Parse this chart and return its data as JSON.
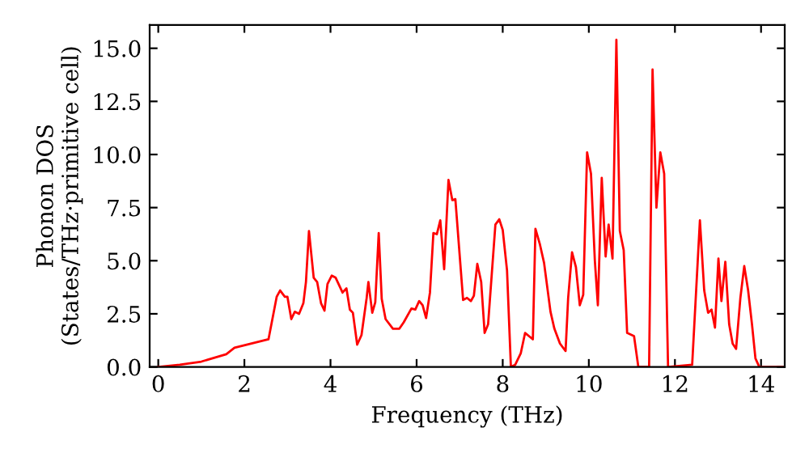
{
  "chart_data": {
    "type": "line",
    "xlabel": "Frequency (THz)",
    "ylabel": "Phonon DOS\n(States/THz·primitive cell)",
    "xlim": [
      -0.2,
      14.55
    ],
    "ylim": [
      0,
      16.1
    ],
    "xticks": [
      0,
      2,
      4,
      6,
      8,
      10,
      12,
      14
    ],
    "yticks": [
      {
        "value": 0,
        "label": "0.0"
      },
      2.5,
      {
        "value": 5,
        "label": "5.0"
      },
      7.5,
      {
        "value": 10,
        "label": "10.0"
      },
      12.5,
      {
        "value": 15,
        "label": "15.0"
      }
    ],
    "grid": false,
    "legend": false,
    "marker": "none",
    "line_style": "solid",
    "series": [
      {
        "color": "#ff0000",
        "x": [
          0,
          0.5,
          1.0,
          1.58,
          1.77,
          2.56,
          2.75,
          2.83,
          2.94,
          3.0,
          3.09,
          3.17,
          3.27,
          3.37,
          3.43,
          3.5,
          3.61,
          3.69,
          3.78,
          3.86,
          3.93,
          4.03,
          4.12,
          4.28,
          4.37,
          4.45,
          4.52,
          4.62,
          4.72,
          4.84,
          4.88,
          4.97,
          5.04,
          5.12,
          5.19,
          5.28,
          5.45,
          5.6,
          5.7,
          5.88,
          5.97,
          6.06,
          6.14,
          6.22,
          6.31,
          6.39,
          6.47,
          6.55,
          6.64,
          6.74,
          6.83,
          6.9,
          7.08,
          7.17,
          7.26,
          7.33,
          7.41,
          7.5,
          7.58,
          7.66,
          7.83,
          7.92,
          8.0,
          8.1,
          8.19,
          8.29,
          8.42,
          8.52,
          8.61,
          8.7,
          8.76,
          8.86,
          8.96,
          9.11,
          9.2,
          9.33,
          9.46,
          9.52,
          9.61,
          9.7,
          9.79,
          9.87,
          9.96,
          10.05,
          10.14,
          10.21,
          10.3,
          10.39,
          10.46,
          10.55,
          10.64,
          10.72,
          10.81,
          10.89,
          11.05,
          11.15,
          11.4,
          11.48,
          11.57,
          11.66,
          11.75,
          11.84,
          12.4,
          12.58,
          12.68,
          12.77,
          12.85,
          12.93,
          13.01,
          13.08,
          13.17,
          13.26,
          13.34,
          13.42,
          13.52,
          13.61,
          13.7,
          13.79,
          13.87,
          13.96,
          14.5
        ],
        "values": [
          0,
          0.1,
          0.25,
          0.6,
          0.9,
          1.3,
          3.3,
          3.6,
          3.3,
          3.3,
          2.25,
          2.6,
          2.5,
          3.0,
          4.0,
          6.4,
          4.2,
          4.0,
          3.0,
          2.65,
          3.9,
          4.3,
          4.2,
          3.5,
          3.7,
          2.7,
          2.55,
          1.05,
          1.5,
          3.25,
          4.0,
          2.55,
          3.05,
          6.3,
          3.2,
          2.25,
          1.8,
          1.8,
          2.1,
          2.75,
          2.7,
          3.1,
          2.9,
          2.3,
          3.5,
          6.3,
          6.25,
          6.9,
          4.6,
          8.8,
          7.85,
          7.9,
          3.15,
          3.25,
          3.1,
          3.35,
          4.85,
          4.0,
          1.6,
          2.0,
          6.7,
          6.95,
          6.45,
          4.55,
          0,
          0.1,
          0.65,
          1.6,
          1.45,
          1.3,
          6.5,
          5.8,
          4.9,
          2.6,
          1.8,
          1.1,
          0.75,
          3.25,
          5.4,
          4.7,
          2.9,
          3.4,
          10.1,
          9.1,
          5.0,
          2.9,
          8.9,
          5.2,
          6.7,
          5.1,
          15.4,
          6.4,
          5.5,
          1.6,
          1.45,
          0,
          0,
          14.0,
          7.5,
          10.1,
          9.1,
          0,
          0.1,
          6.9,
          3.6,
          2.55,
          2.7,
          1.85,
          5.1,
          3.1,
          4.95,
          2.0,
          1.1,
          0.85,
          3.25,
          4.75,
          3.6,
          2.0,
          0.4,
          0,
          0
        ]
      }
    ]
  }
}
